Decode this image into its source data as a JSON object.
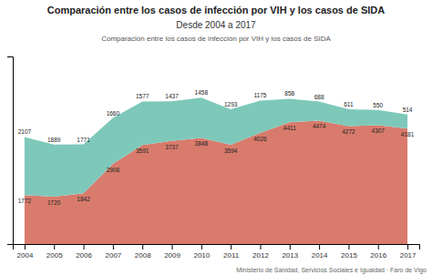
{
  "chart_data": {
    "type": "area",
    "title": "Comparación entre los casos de infección por VIH y los casos de SIDA",
    "subtitle": "Desde 2004 a 2017",
    "annotations": [
      "Comparación entre los casos de infección por VIH y los casos de SIDA",
      "Ministerio de Sanidad, Servicios Sociales e Igualdad · Faro de Vigo"
    ],
    "x": [
      2004,
      2005,
      2006,
      2007,
      2008,
      2009,
      2010,
      2011,
      2012,
      2013,
      2014,
      2015,
      2016,
      2017
    ],
    "series": [
      {
        "color": "#d97b6c",
        "values": [
          1772,
          1720,
          1842,
          2908,
          3591,
          3737,
          3848,
          3594,
          4026,
          4411,
          4474,
          4272,
          4307,
          4181
        ]
      },
      {
        "color": "#7ec8ba",
        "values": [
          2107,
          1889,
          1771,
          1660,
          1577,
          1437,
          1458,
          1293,
          1175,
          858,
          688,
          611,
          550,
          514
        ]
      }
    ],
    "stacked": true,
    "xlim": [
      2003.6,
      2017.4
    ],
    "xticks": [
      2004,
      2005,
      2006,
      2007,
      2008,
      2009,
      2010,
      2011,
      2012,
      2013,
      2014,
      2015,
      2016,
      2017
    ],
    "ylim": [
      0,
      6800
    ],
    "tick_labels": "x",
    "data_labels": true
  }
}
